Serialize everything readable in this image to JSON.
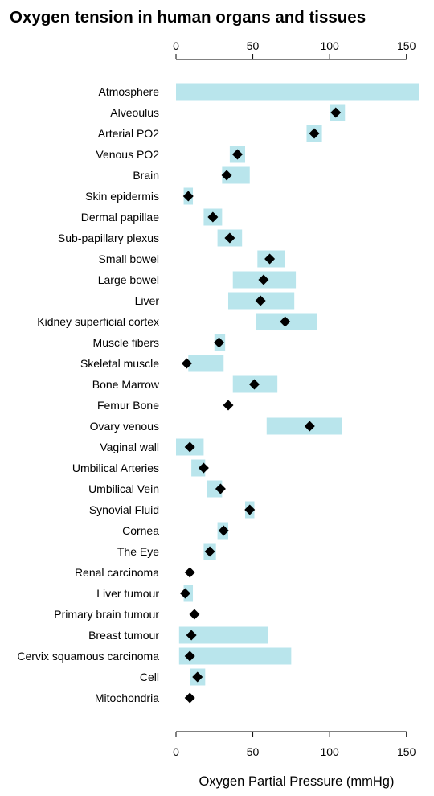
{
  "chart_data": {
    "type": "range-bar",
    "title": "Oxygen tension in human organs and tissues",
    "xlabel": "Oxygen Partial Pressure (mmHg)",
    "xlim": [
      0,
      158
    ],
    "xticks": [
      0,
      50,
      100,
      150
    ],
    "orientation": "horizontal",
    "colors": {
      "range": "#b9e5ec",
      "point": "#000000"
    },
    "categories": [
      "Atmosphere",
      "Alveoulus",
      "Arterial PO2",
      "Venous PO2",
      "Brain",
      "Skin epidermis",
      "Dermal papillae",
      "Sub-papillary plexus",
      "Small bowel",
      "Large bowel",
      "Liver",
      "Kidney superficial cortex",
      "Muscle fibers",
      "Skeletal muscle",
      "Bone Marrow",
      "Femur Bone",
      "Ovary venous",
      "Vaginal wall",
      "Umbilical Arteries",
      "Umbilical Vein",
      "Synovial Fluid",
      "Cornea",
      "The Eye",
      "Renal carcinoma",
      "Liver tumour",
      "Primary brain tumour",
      "Breast tumour",
      "Cervix squamous carcinoma",
      "Cell",
      "Mitochondria"
    ],
    "series": [
      {
        "name": "range",
        "values": [
          [
            0,
            158
          ],
          [
            100,
            110
          ],
          [
            85,
            95
          ],
          [
            35,
            45
          ],
          [
            30,
            48
          ],
          [
            5,
            11
          ],
          [
            18,
            30
          ],
          [
            27,
            43
          ],
          [
            53,
            71
          ],
          [
            37,
            78
          ],
          [
            34,
            77
          ],
          [
            52,
            92
          ],
          [
            25,
            32
          ],
          [
            8,
            31
          ],
          [
            37,
            66
          ],
          null,
          [
            59,
            108
          ],
          [
            0,
            18
          ],
          [
            10,
            19
          ],
          [
            20,
            30
          ],
          [
            45,
            51
          ],
          [
            27,
            34
          ],
          [
            18,
            26
          ],
          null,
          [
            5,
            11
          ],
          null,
          [
            2,
            60
          ],
          [
            2,
            75
          ],
          [
            9,
            19
          ],
          null
        ]
      },
      {
        "name": "point",
        "values": [
          null,
          104,
          90,
          40,
          33,
          8,
          24,
          35,
          61,
          57,
          55,
          71,
          28,
          7,
          51,
          34,
          87,
          9,
          18,
          29,
          48,
          31,
          22,
          9,
          6,
          12,
          10,
          9,
          14,
          9
        ]
      }
    ]
  }
}
